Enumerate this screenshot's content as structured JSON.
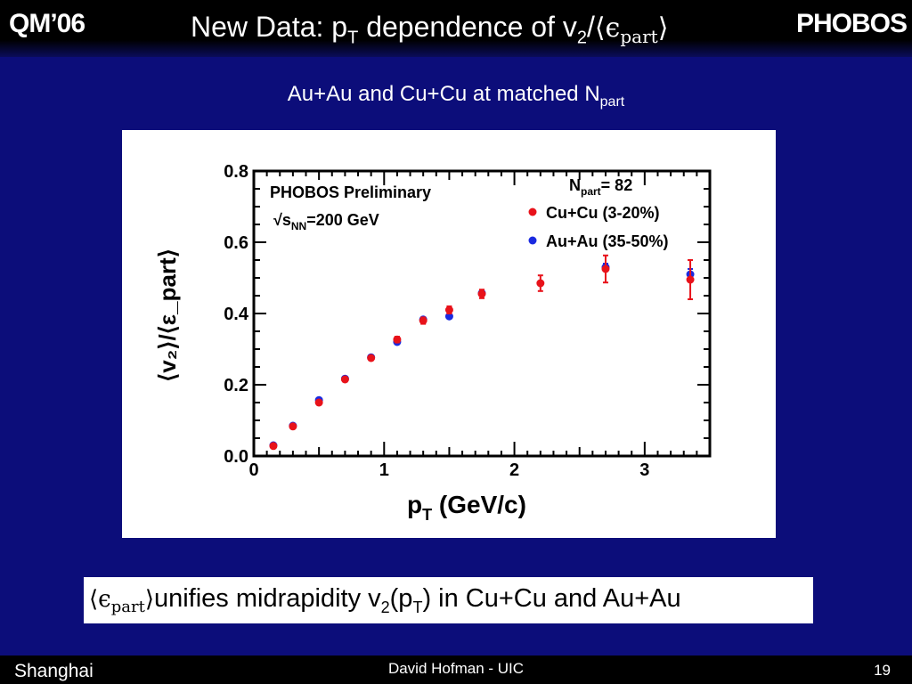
{
  "header": {
    "left_label": "QM’06",
    "right_label": "PHOBOS",
    "title_main": "New Data: p",
    "title_sub_T": "T",
    "title_mid": " dependence of v",
    "title_sub_2": "2",
    "title_slash": "/",
    "title_math": "⟨ϵ",
    "title_math_sub": "part",
    "title_math_close": "⟩"
  },
  "subtitle": {
    "text": "Au+Au and Cu+Cu at matched N",
    "sub": "part"
  },
  "caption": {
    "math": "⟨ϵ",
    "math_sub": "part",
    "math_close": "⟩",
    "text1": "unifies midrapidity v",
    "sub2": "2",
    "text2": "(p",
    "subT": "T",
    "text3": ") in Cu+Cu and Au+Au"
  },
  "footer": {
    "left": "Shanghai",
    "center": "David Hofman - UIC",
    "right": "19"
  },
  "chart_data": {
    "type": "scatter",
    "xlabel": "p",
    "xlabel_sub": "T",
    "xlabel_unit": " (GeV/c)",
    "ylabel": "⟨v₂⟩/⟨ε_part⟩",
    "xlim": [
      0,
      3.5
    ],
    "ylim": [
      0,
      0.8
    ],
    "x_ticks": [
      "0",
      "1",
      "2",
      "3"
    ],
    "y_ticks": [
      "0.0",
      "0.2",
      "0.4",
      "0.6",
      "0.8"
    ],
    "annotations": {
      "preliminary": "PHOBOS Preliminary",
      "energy": "√s",
      "energy_sub": "NN",
      "energy_rest": "=200 GeV",
      "npart": "N",
      "npart_sub": "part",
      "npart_value": "= 82"
    },
    "legend_position": "top-right",
    "series": [
      {
        "name": "Cu+Cu (3-20%)",
        "color": "#e8121a",
        "points": [
          {
            "x": 0.15,
            "y": 0.028,
            "err": 0.004
          },
          {
            "x": 0.3,
            "y": 0.083,
            "err": 0.005
          },
          {
            "x": 0.5,
            "y": 0.15,
            "err": 0.006
          },
          {
            "x": 0.7,
            "y": 0.215,
            "err": 0.006
          },
          {
            "x": 0.9,
            "y": 0.275,
            "err": 0.007
          },
          {
            "x": 1.1,
            "y": 0.327,
            "err": 0.008
          },
          {
            "x": 1.3,
            "y": 0.38,
            "err": 0.009
          },
          {
            "x": 1.5,
            "y": 0.41,
            "err": 0.01
          },
          {
            "x": 1.75,
            "y": 0.455,
            "err": 0.012
          },
          {
            "x": 2.2,
            "y": 0.485,
            "err": 0.022
          },
          {
            "x": 2.7,
            "y": 0.525,
            "err": 0.038
          },
          {
            "x": 3.35,
            "y": 0.495,
            "err": 0.055
          }
        ]
      },
      {
        "name": "Au+Au (35-50%)",
        "color": "#1a2ae0",
        "points": [
          {
            "x": 0.15,
            "y": 0.03,
            "err": 0.002
          },
          {
            "x": 0.3,
            "y": 0.085,
            "err": 0.003
          },
          {
            "x": 0.5,
            "y": 0.157,
            "err": 0.003
          },
          {
            "x": 0.7,
            "y": 0.217,
            "err": 0.003
          },
          {
            "x": 0.9,
            "y": 0.277,
            "err": 0.003
          },
          {
            "x": 1.1,
            "y": 0.32,
            "err": 0.004
          },
          {
            "x": 1.3,
            "y": 0.383,
            "err": 0.004
          },
          {
            "x": 1.5,
            "y": 0.392,
            "err": 0.005
          },
          {
            "x": 1.75,
            "y": 0.457,
            "err": 0.006
          },
          {
            "x": 2.7,
            "y": 0.53,
            "err": 0.01
          },
          {
            "x": 3.35,
            "y": 0.51,
            "err": 0.015
          }
        ]
      }
    ]
  }
}
